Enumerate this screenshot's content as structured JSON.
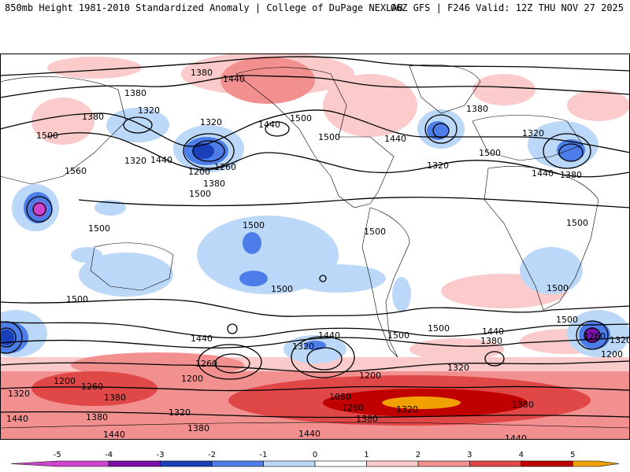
{
  "header": {
    "left": "850mb Height 1981-2010 Standardized Anomaly | College of DuPage NEXLAB",
    "right": "06Z GFS | F246 Valid: 12Z THU NOV 27 2025"
  },
  "colorbar": {
    "ticks": [
      "-5",
      "-4",
      "-3",
      "-2",
      "-1",
      "0",
      "1",
      "2",
      "3",
      "4",
      "5"
    ],
    "bins": [
      {
        "from": -5.0,
        "to": -4.0,
        "color": "#cc44cc"
      },
      {
        "from": -4.0,
        "to": -3.0,
        "color": "#7b10a8"
      },
      {
        "from": -3.0,
        "to": -2.0,
        "color": "#1a3fb8"
      },
      {
        "from": -2.0,
        "to": -1.0,
        "color": "#4d7de8"
      },
      {
        "from": -1.0,
        "to": 0.0,
        "color": "#bcd8f8"
      },
      {
        "from": 0.0,
        "to": 1.0,
        "color": "#ffffff"
      },
      {
        "from": 1.0,
        "to": 2.0,
        "color": "#fbcaca"
      },
      {
        "from": 2.0,
        "to": 3.0,
        "color": "#f29090"
      },
      {
        "from": 3.0,
        "to": 4.0,
        "color": "#e04848"
      },
      {
        "from": 4.0,
        "to": 5.0,
        "color": "#c00000"
      },
      {
        "from": 5.0,
        "to": 6.0,
        "color": "#f0a000"
      }
    ]
  },
  "contour_labels": [
    "1380",
    "1440",
    "1380",
    "1320",
    "1380",
    "1320",
    "1500",
    "1560",
    "1320",
    "1440",
    "1200",
    "1260",
    "1380",
    "1500",
    "1440",
    "1500",
    "1380",
    "1440",
    "1320",
    "1500",
    "1320",
    "1440",
    "1380",
    "1500",
    "1500",
    "1500",
    "1500",
    "1500",
    "1500",
    "1500",
    "1500",
    "1500",
    "1500",
    "1440",
    "1380",
    "1500",
    "1440",
    "1320",
    "1260",
    "1200",
    "1080",
    "1200",
    "1260",
    "1320",
    "1380",
    "1440",
    "1320",
    "1380",
    "1440",
    "1380",
    "1200",
    "1260",
    "1320",
    "1380",
    "1440",
    "1320",
    "1380",
    "1440",
    "1440",
    "1200",
    "1320",
    "1260"
  ]
}
